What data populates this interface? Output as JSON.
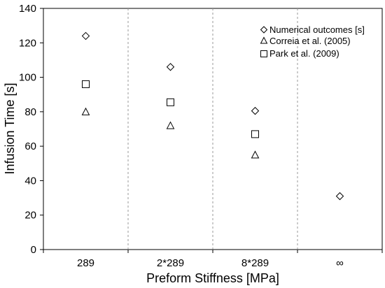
{
  "chart_data": {
    "type": "scatter",
    "title": "",
    "xlabel": "Preform Stiffness [MPa]",
    "ylabel": "Infusion Time [s]",
    "categories": [
      "289",
      "2*289",
      "8*289",
      "∞"
    ],
    "ylim": [
      0,
      140
    ],
    "yticks": [
      "0",
      "20",
      "40",
      "60",
      "80",
      "100",
      "120",
      "140"
    ],
    "grid": "vertical dashed separators between categories",
    "legend_position": "top-right",
    "series": [
      {
        "name": "Numerical outcomes [s]",
        "marker": "diamond",
        "values": [
          124,
          106,
          80.5,
          31
        ]
      },
      {
        "name": "Correia et al. (2005)",
        "marker": "triangle",
        "values": [
          80,
          72,
          55,
          null
        ]
      },
      {
        "name": "Park et al. (2009)",
        "marker": "square",
        "values": [
          96,
          85.5,
          67,
          null
        ]
      }
    ]
  }
}
